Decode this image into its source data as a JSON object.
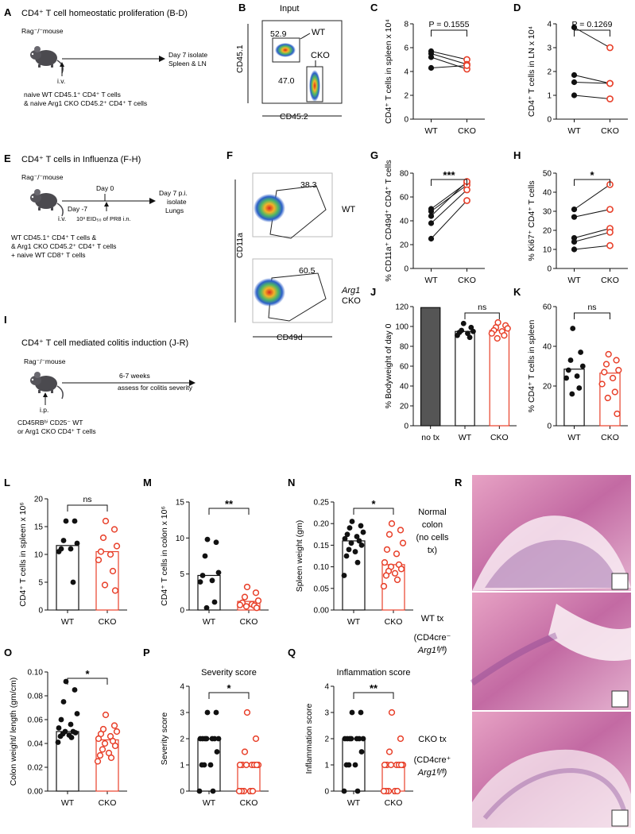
{
  "colors": {
    "wt": "#111111",
    "cko": "#e8402a",
    "notx": "#555555",
    "gate": "#333333"
  },
  "panels": {
    "A": {
      "letter": "A",
      "title": "CD4⁺ T cell homeostatic proliferation (B-D)",
      "host": "Rag⁻/⁻mouse",
      "route": "i.v.",
      "outcome": "Day 7 isolate",
      "outcome2": "Spleen & LN",
      "note1": "naive WT CD45.1⁺ CD4⁺ T cells",
      "note2": "& naive Arg1 CKO CD45.2⁺ CD4⁺ T cells"
    },
    "B": {
      "letter": "B",
      "title": "Input",
      "ylab": "CD45.1",
      "xlab": "CD45.2",
      "g1": "52.9",
      "g2": "47.0",
      "wt": "WT",
      "cko": "CKO"
    },
    "C": {
      "letter": "C"
    },
    "D": {
      "letter": "D"
    },
    "E": {
      "letter": "E",
      "title": "CD4⁺ T cells in Influenza (F-H)",
      "host": "Rag⁻/⁻mouse",
      "dm7": "Day -7",
      "route": "i.v.",
      "d0": "Day 0",
      "dose": "10³ EID₅₀ of PR8 i.n.",
      "outcome": "Day 7 p.i.",
      "outcome2": "isolate",
      "outcome3": "Lungs",
      "note1": "WT CD45.1⁺ CD4⁺ T cells &",
      "note2": "& Arg1 CKO CD45.2⁺ CD4⁺ T cells",
      "note3": "+ naive WT CD8⁺ T cells"
    },
    "F": {
      "letter": "F",
      "ylab": "CD11a",
      "xlab": "CD49d",
      "g1": "38.3",
      "g2": "60.5",
      "wt": "WT",
      "arg1": "Arg1",
      "cko": "CKO"
    },
    "G": {
      "letter": "G"
    },
    "H": {
      "letter": "H"
    },
    "I": {
      "letter": "I",
      "title": "CD4⁺ T cell mediated colitis induction (J-R)",
      "host": "Rag⁻/⁻mouse",
      "route": "i.p.",
      "outcome": "6-7 weeks",
      "outcome2": "assess for colitis severity",
      "note1": "CD45RBʰⁱ CD25⁻ WT",
      "note2": "or Arg1 CKO CD4⁺ T cells"
    },
    "J": {
      "letter": "J"
    },
    "K": {
      "letter": "K"
    },
    "L": {
      "letter": "L"
    },
    "M": {
      "letter": "M"
    },
    "N": {
      "letter": "N"
    },
    "O": {
      "letter": "O"
    },
    "P": {
      "letter": "P"
    },
    "Q": {
      "letter": "Q"
    },
    "R": {
      "letter": "R",
      "normal1": "Normal",
      "normal2": "colon",
      "normal3": "(no cells",
      "normal4": "tx)",
      "wt1": "WT tx",
      "wt2": "(CD4cre⁻",
      "wt3": "Arg1ᶠˡ/ᶠˡ)",
      "cko1": "CKO tx",
      "cko2": "(CD4cre⁺",
      "cko3": "Arg1ᶠˡ/ᶠˡ)"
    }
  },
  "chart_data": [
    {
      "id": "C",
      "type": "scatter",
      "subtype": "paired",
      "title": "",
      "ylabel": "CD4⁺ T cells in spleen x 10⁴",
      "categories": [
        "WT",
        "CKO"
      ],
      "ylim": [
        0,
        8
      ],
      "yticks": [
        0,
        2,
        4,
        6,
        8
      ],
      "pairs": [
        [
          5.7,
          5.0
        ],
        [
          5.5,
          4.6
        ],
        [
          5.2,
          4.2
        ],
        [
          4.3,
          4.5
        ]
      ],
      "stat": "P = 0.1555"
    },
    {
      "id": "D",
      "type": "scatter",
      "subtype": "paired",
      "title": "",
      "ylabel": "CD4⁺ T cells in LN x 10⁴",
      "categories": [
        "WT",
        "CKO"
      ],
      "ylim": [
        0,
        4
      ],
      "yticks": [
        0,
        1,
        2,
        3,
        4
      ],
      "pairs": [
        [
          3.85,
          3.0
        ],
        [
          1.85,
          1.5
        ],
        [
          1.55,
          1.5
        ],
        [
          1.0,
          0.85
        ]
      ],
      "stat": "P = 0.1269"
    },
    {
      "id": "G",
      "type": "scatter",
      "subtype": "paired",
      "title": "",
      "ylabel": "% CD11a⁺ CD49d⁺ CD4⁺ T cells",
      "categories": [
        "WT",
        "CKO"
      ],
      "ylim": [
        0,
        80
      ],
      "yticks": [
        0,
        20,
        40,
        60,
        80
      ],
      "pairs": [
        [
          50,
          72
        ],
        [
          48,
          70
        ],
        [
          44,
          73
        ],
        [
          38,
          66
        ],
        [
          25,
          57
        ]
      ],
      "stat": "***"
    },
    {
      "id": "H",
      "type": "scatter",
      "subtype": "paired",
      "title": "",
      "ylabel": "% Ki67⁺ CD4⁺ T cells",
      "categories": [
        "WT",
        "CKO"
      ],
      "ylim": [
        0,
        50
      ],
      "yticks": [
        0,
        10,
        20,
        30,
        40,
        50
      ],
      "pairs": [
        [
          31,
          44
        ],
        [
          27,
          31
        ],
        [
          16,
          21
        ],
        [
          14,
          19
        ],
        [
          10,
          12
        ]
      ],
      "stat": "*"
    },
    {
      "id": "J",
      "type": "bar",
      "title": "",
      "ylabel": "% Bodyweight of day 0",
      "categories": [
        "no tx",
        "WT",
        "CKO"
      ],
      "ylim": [
        0,
        120
      ],
      "yticks": [
        0,
        20,
        40,
        60,
        80,
        100,
        120
      ],
      "values": [
        119,
        95,
        96
      ],
      "points": [
        [],
        [
          103,
          99,
          96,
          95,
          94,
          93,
          91,
          89
        ],
        [
          104,
          101,
          99,
          98,
          96,
          95,
          93,
          91,
          88
        ]
      ],
      "stat": "ns"
    },
    {
      "id": "K",
      "type": "bar",
      "title": "",
      "ylabel": "% CD4⁺ T cells in spleen",
      "categories": [
        "WT",
        "CKO"
      ],
      "ylim": [
        0,
        60
      ],
      "yticks": [
        0,
        20,
        40,
        60
      ],
      "values": [
        28.5,
        26.5
      ],
      "points": [
        [
          49,
          37,
          33,
          30,
          28,
          25,
          24,
          19,
          16
        ],
        [
          36,
          33,
          31,
          28,
          27,
          24,
          21,
          17,
          14,
          6
        ]
      ],
      "stat": "ns"
    },
    {
      "id": "L",
      "type": "bar",
      "title": "",
      "ylabel": "CD4⁺ T cells in spleen x 10⁶",
      "categories": [
        "WT",
        "CKO"
      ],
      "ylim": [
        0,
        20
      ],
      "yticks": [
        0,
        5,
        10,
        15,
        20
      ],
      "values": [
        11.6,
        10.5
      ],
      "points": [
        [
          16,
          16,
          12.5,
          12,
          11,
          11,
          10.5,
          5
        ],
        [
          16,
          14.5,
          13,
          11.5,
          10.5,
          10,
          9,
          7,
          4.5,
          3.5
        ]
      ],
      "stat": "ns"
    },
    {
      "id": "M",
      "type": "bar",
      "title": "",
      "ylabel": "CD4⁺ T cells in colon x 10⁶",
      "categories": [
        "WT",
        "CKO"
      ],
      "ylim": [
        0,
        15
      ],
      "yticks": [
        0,
        5,
        10,
        15
      ],
      "values": [
        4.8,
        1.2
      ],
      "points": [
        [
          9.8,
          9.4,
          7.5,
          5.2,
          4.8,
          4.1,
          3.9,
          1.1,
          0.3
        ],
        [
          3.2,
          2.4,
          1.8,
          1.3,
          1.0,
          0.8,
          0.7,
          0.6,
          0.5,
          0.3
        ]
      ],
      "stat": "**"
    },
    {
      "id": "N",
      "type": "bar",
      "title": "",
      "ylabel": "Spleen weight (gm)",
      "categories": [
        "WT",
        "CKO"
      ],
      "ylim": [
        0,
        0.25
      ],
      "yticks": [
        0.0,
        0.05,
        0.1,
        0.15,
        0.2,
        0.25
      ],
      "values": [
        0.16,
        0.105
      ],
      "points": [
        [
          0.205,
          0.195,
          0.19,
          0.18,
          0.175,
          0.17,
          0.165,
          0.16,
          0.155,
          0.15,
          0.14,
          0.135,
          0.125,
          0.11,
          0.08
        ],
        [
          0.2,
          0.185,
          0.175,
          0.155,
          0.14,
          0.13,
          0.11,
          0.105,
          0.1,
          0.095,
          0.09,
          0.085,
          0.08,
          0.07,
          0.055
        ]
      ],
      "stat": "*"
    },
    {
      "id": "O",
      "type": "bar",
      "title": "",
      "ylabel": "Colon weight/ length (gm/cm)",
      "categories": [
        "WT",
        "CKO"
      ],
      "ylim": [
        0,
        0.1
      ],
      "yticks": [
        0.0,
        0.02,
        0.04,
        0.06,
        0.08,
        0.1
      ],
      "values": [
        0.05,
        0.043
      ],
      "points": [
        [
          0.092,
          0.085,
          0.075,
          0.065,
          0.06,
          0.056,
          0.053,
          0.05,
          0.05,
          0.049,
          0.048,
          0.047,
          0.046,
          0.045,
          0.041
        ],
        [
          0.064,
          0.055,
          0.052,
          0.05,
          0.048,
          0.046,
          0.044,
          0.042,
          0.04,
          0.038,
          0.035,
          0.032,
          0.03,
          0.028,
          0.025
        ]
      ],
      "stat": "*"
    },
    {
      "id": "P",
      "type": "bar",
      "title": "Severity score",
      "ylabel": "Severity score",
      "categories": [
        "WT",
        "CKO"
      ],
      "ylim": [
        0,
        4
      ],
      "yticks": [
        0,
        1,
        2,
        3,
        4
      ],
      "values": [
        2,
        1
      ],
      "points": [
        [
          3,
          3,
          2,
          2,
          2,
          2,
          2,
          2,
          2,
          1.5,
          1,
          1,
          1,
          0,
          0
        ],
        [
          3,
          2,
          1.5,
          1,
          1,
          1,
          1,
          1,
          1,
          1,
          0,
          0,
          0,
          0,
          0
        ]
      ],
      "stat": "*"
    },
    {
      "id": "Q",
      "type": "bar",
      "title": "Inflammation score",
      "ylabel": "Inflammation score",
      "categories": [
        "WT",
        "CKO"
      ],
      "ylim": [
        0,
        4
      ],
      "yticks": [
        0,
        1,
        2,
        3,
        4
      ],
      "values": [
        2,
        1
      ],
      "points": [
        [
          3,
          3,
          2,
          2,
          2,
          2,
          2,
          2,
          2,
          1.5,
          1,
          1,
          1,
          0,
          0
        ],
        [
          3,
          2,
          1.5,
          1,
          1,
          1,
          1,
          1,
          1,
          1,
          0,
          0,
          0,
          0,
          0
        ]
      ],
      "stat": "**"
    }
  ]
}
